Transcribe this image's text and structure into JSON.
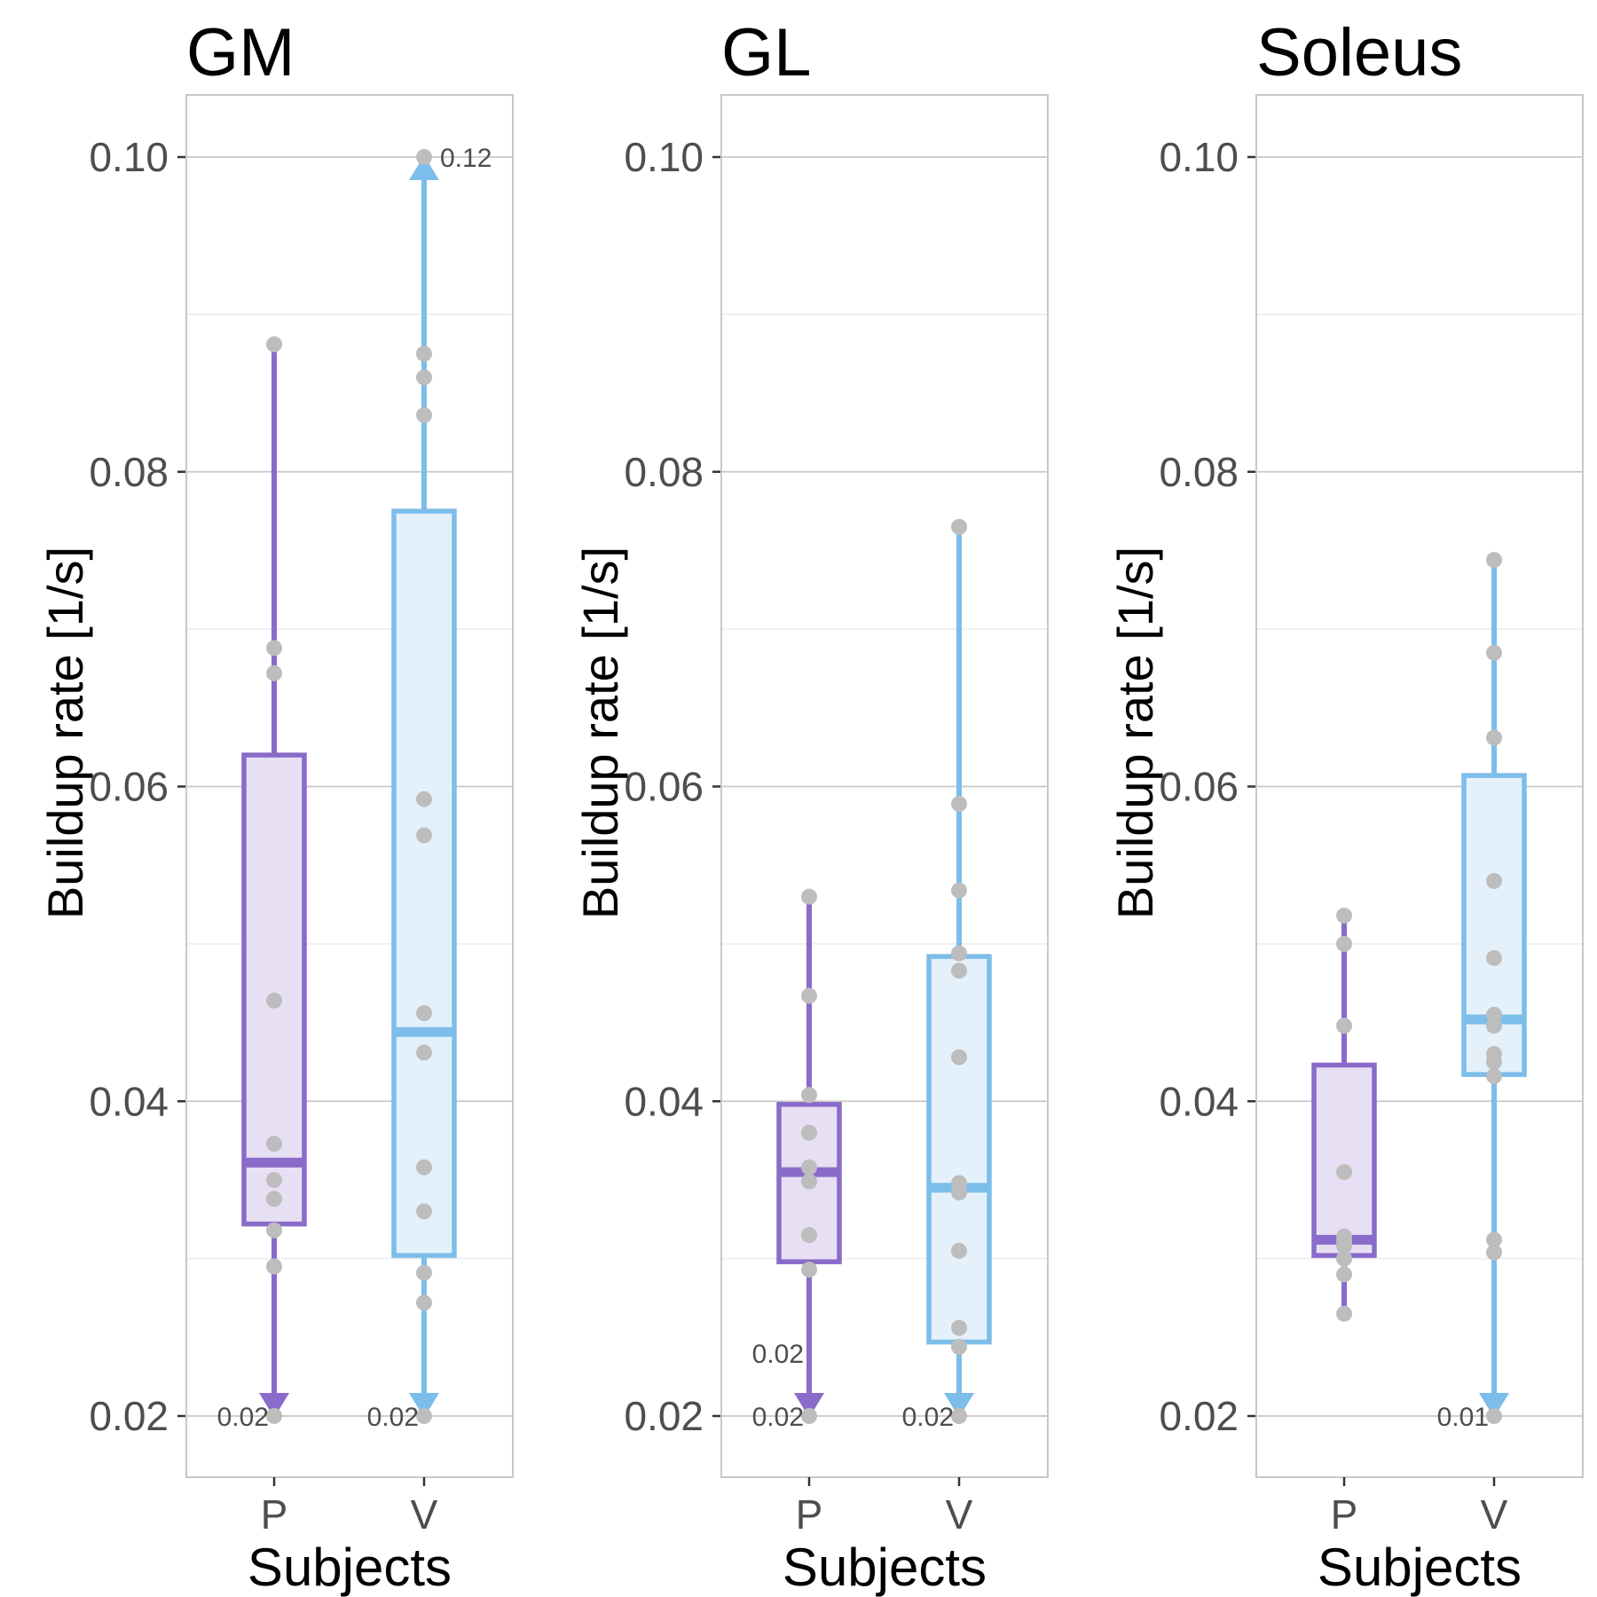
{
  "chart_data": [
    {
      "type": "box",
      "title": "GM",
      "xlabel": "Subjects",
      "ylabel": "Buildup rate [1/s]",
      "ylim": [
        0.016,
        0.104
      ],
      "yticks": [
        "0.02",
        "0.04",
        "0.06",
        "0.08",
        "0.10"
      ],
      "categories": [
        "P",
        "V"
      ],
      "colors": {
        "P": "#8a6bc9",
        "V": "#7cbdea"
      },
      "fills": {
        "P": "#e7dff3",
        "V": "#e4f1fb"
      },
      "boxes": [
        {
          "category": "P",
          "lower": 0.02,
          "q1": 0.0322,
          "median": 0.0361,
          "q3": 0.062,
          "upper": 0.0881,
          "points": [
            0.0881,
            0.0688,
            0.0672,
            0.0464,
            0.0373,
            0.035,
            0.0338,
            0.0318,
            0.0295,
            0.02
          ],
          "lower_arrow": true,
          "upper_arrow": false,
          "annotations": [
            {
              "label": "0.02",
              "y": 0.02
            }
          ]
        },
        {
          "category": "V",
          "lower": 0.02,
          "q1": 0.0302,
          "median": 0.0444,
          "q3": 0.0775,
          "upper": 0.1,
          "points": [
            0.1,
            0.0875,
            0.086,
            0.0836,
            0.0592,
            0.0569,
            0.0456,
            0.0431,
            0.0358,
            0.033,
            0.0291,
            0.0272,
            0.02
          ],
          "lower_arrow": true,
          "upper_arrow": true,
          "annotations": [
            {
              "label": "0.12",
              "y": 0.1
            },
            {
              "label": "0.02",
              "y": 0.02
            }
          ]
        }
      ]
    },
    {
      "type": "box",
      "title": "GL",
      "xlabel": "Subjects",
      "ylabel": "Buildup rate [1/s]",
      "ylim": [
        0.016,
        0.104
      ],
      "yticks": [
        "0.02",
        "0.04",
        "0.06",
        "0.08",
        "0.10"
      ],
      "categories": [
        "P",
        "V"
      ],
      "colors": {
        "P": "#8a6bc9",
        "V": "#7cbdea"
      },
      "fills": {
        "P": "#e7dff3",
        "V": "#e4f1fb"
      },
      "boxes": [
        {
          "category": "P",
          "lower": 0.02,
          "q1": 0.0298,
          "median": 0.0355,
          "q3": 0.0398,
          "upper": 0.053,
          "points": [
            0.053,
            0.0467,
            0.0404,
            0.038,
            0.0358,
            0.0349,
            0.0315,
            0.0293,
            0.02
          ],
          "lower_arrow": true,
          "upper_arrow": false,
          "annotations": [
            {
              "label": "0.02",
              "y": 0.024
            },
            {
              "label": "0.02",
              "y": 0.02
            }
          ]
        },
        {
          "category": "V",
          "lower": 0.02,
          "q1": 0.0247,
          "median": 0.0345,
          "q3": 0.0492,
          "upper": 0.0765,
          "points": [
            0.0765,
            0.0589,
            0.0534,
            0.0494,
            0.0483,
            0.0428,
            0.0348,
            0.0342,
            0.0305,
            0.0256,
            0.0244,
            0.02
          ],
          "lower_arrow": true,
          "upper_arrow": false,
          "annotations": [
            {
              "label": "0.02",
              "y": 0.02
            }
          ]
        }
      ]
    },
    {
      "type": "box",
      "title": "Soleus",
      "xlabel": "Subjects",
      "ylabel": "Buildup rate [1/s]",
      "ylim": [
        0.016,
        0.104
      ],
      "yticks": [
        "0.02",
        "0.04",
        "0.06",
        "0.08",
        "0.10"
      ],
      "categories": [
        "P",
        "V"
      ],
      "colors": {
        "P": "#8a6bc9",
        "V": "#7cbdea"
      },
      "fills": {
        "P": "#e7dff3",
        "V": "#e4f1fb"
      },
      "boxes": [
        {
          "category": "P",
          "lower": 0.0265,
          "q1": 0.0302,
          "median": 0.0312,
          "q3": 0.0423,
          "upper": 0.0518,
          "points": [
            0.0518,
            0.05,
            0.0448,
            0.0355,
            0.0314,
            0.0311,
            0.0308,
            0.03,
            0.029,
            0.0265
          ],
          "lower_arrow": false,
          "upper_arrow": false,
          "annotations": []
        },
        {
          "category": "V",
          "lower": 0.02,
          "q1": 0.0417,
          "median": 0.0452,
          "q3": 0.0607,
          "upper": 0.0744,
          "points": [
            0.0744,
            0.0685,
            0.0631,
            0.054,
            0.0491,
            0.0455,
            0.0448,
            0.043,
            0.0425,
            0.0416,
            0.0312,
            0.0304,
            0.02
          ],
          "lower_arrow": true,
          "upper_arrow": false,
          "annotations": [
            {
              "label": "0.01",
              "y": 0.02
            }
          ]
        }
      ]
    }
  ]
}
